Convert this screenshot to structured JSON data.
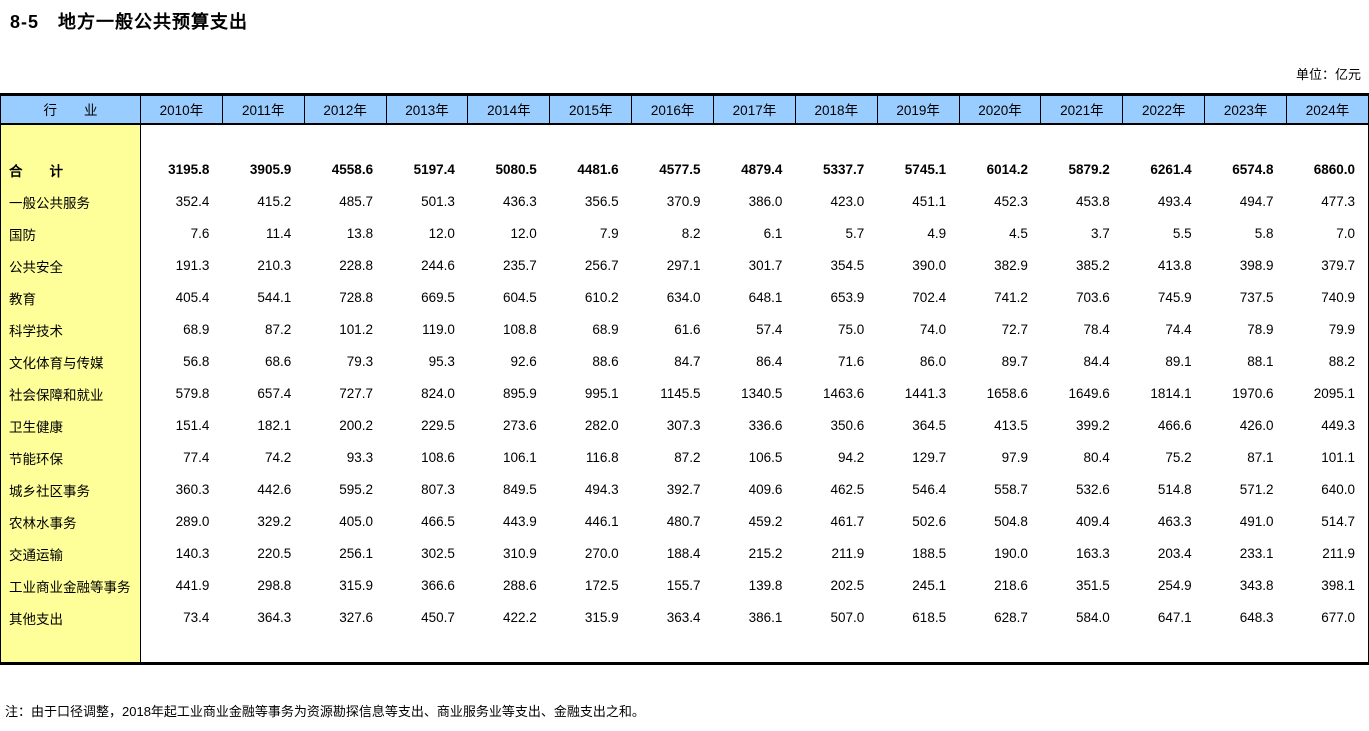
{
  "page": {
    "title": "8-5　地方一般公共预算支出",
    "unit_label": "单位：亿元",
    "footnote": "注：由于口径调整，2018年起工业商业金融等事务为资源勘探信息等支出、商业服务业等支出、金融支出之和。"
  },
  "colors": {
    "header_bg": "#99CCFF",
    "label_col_bg": "#FFFF99",
    "border": "#000000"
  },
  "table": {
    "industry_header": "行　　业",
    "year_headers": [
      "2010年",
      "2011年",
      "2012年",
      "2013年",
      "2014年",
      "2015年",
      "2016年",
      "2017年",
      "2018年",
      "2019年",
      "2020年",
      "2021年",
      "2022年",
      "2023年",
      "2024年"
    ],
    "rows": [
      {
        "label": "合　　计",
        "bold": true,
        "values": [
          "3195.8",
          "3905.9",
          "4558.6",
          "5197.4",
          "5080.5",
          "4481.6",
          "4577.5",
          "4879.4",
          "5337.7",
          "5745.1",
          "6014.2",
          "5879.2",
          "6261.4",
          "6574.8",
          "6860.0"
        ]
      },
      {
        "label": "一般公共服务",
        "bold": false,
        "values": [
          "352.4",
          "415.2",
          "485.7",
          "501.3",
          "436.3",
          "356.5",
          "370.9",
          "386.0",
          "423.0",
          "451.1",
          "452.3",
          "453.8",
          "493.4",
          "494.7",
          "477.3"
        ]
      },
      {
        "label": "国防",
        "bold": false,
        "values": [
          "7.6",
          "11.4",
          "13.8",
          "12.0",
          "12.0",
          "7.9",
          "8.2",
          "6.1",
          "5.7",
          "4.9",
          "4.5",
          "3.7",
          "5.5",
          "5.8",
          "7.0"
        ]
      },
      {
        "label": "公共安全",
        "bold": false,
        "values": [
          "191.3",
          "210.3",
          "228.8",
          "244.6",
          "235.7",
          "256.7",
          "297.1",
          "301.7",
          "354.5",
          "390.0",
          "382.9",
          "385.2",
          "413.8",
          "398.9",
          "379.7"
        ]
      },
      {
        "label": "教育",
        "bold": false,
        "values": [
          "405.4",
          "544.1",
          "728.8",
          "669.5",
          "604.5",
          "610.2",
          "634.0",
          "648.1",
          "653.9",
          "702.4",
          "741.2",
          "703.6",
          "745.9",
          "737.5",
          "740.9"
        ]
      },
      {
        "label": "科学技术",
        "bold": false,
        "values": [
          "68.9",
          "87.2",
          "101.2",
          "119.0",
          "108.8",
          "68.9",
          "61.6",
          "57.4",
          "75.0",
          "74.0",
          "72.7",
          "78.4",
          "74.4",
          "78.9",
          "79.9"
        ]
      },
      {
        "label": "文化体育与传媒",
        "bold": false,
        "values": [
          "56.8",
          "68.6",
          "79.3",
          "95.3",
          "92.6",
          "88.6",
          "84.7",
          "86.4",
          "71.6",
          "86.0",
          "89.7",
          "84.4",
          "89.1",
          "88.1",
          "88.2"
        ]
      },
      {
        "label": "社会保障和就业",
        "bold": false,
        "values": [
          "579.8",
          "657.4",
          "727.7",
          "824.0",
          "895.9",
          "995.1",
          "1145.5",
          "1340.5",
          "1463.6",
          "1441.3",
          "1658.6",
          "1649.6",
          "1814.1",
          "1970.6",
          "2095.1"
        ]
      },
      {
        "label": "卫生健康",
        "bold": false,
        "values": [
          "151.4",
          "182.1",
          "200.2",
          "229.5",
          "273.6",
          "282.0",
          "307.3",
          "336.6",
          "350.6",
          "364.5",
          "413.5",
          "399.2",
          "466.6",
          "426.0",
          "449.3"
        ]
      },
      {
        "label": "节能环保",
        "bold": false,
        "values": [
          "77.4",
          "74.2",
          "93.3",
          "108.6",
          "106.1",
          "116.8",
          "87.2",
          "106.5",
          "94.2",
          "129.7",
          "97.9",
          "80.4",
          "75.2",
          "87.1",
          "101.1"
        ]
      },
      {
        "label": "城乡社区事务",
        "bold": false,
        "values": [
          "360.3",
          "442.6",
          "595.2",
          "807.3",
          "849.5",
          "494.3",
          "392.7",
          "409.6",
          "462.5",
          "546.4",
          "558.7",
          "532.6",
          "514.8",
          "571.2",
          "640.0"
        ]
      },
      {
        "label": "农林水事务",
        "bold": false,
        "values": [
          "289.0",
          "329.2",
          "405.0",
          "466.5",
          "443.9",
          "446.1",
          "480.7",
          "459.2",
          "461.7",
          "502.6",
          "504.8",
          "409.4",
          "463.3",
          "491.0",
          "514.7"
        ]
      },
      {
        "label": "交通运输",
        "bold": false,
        "values": [
          "140.3",
          "220.5",
          "256.1",
          "302.5",
          "310.9",
          "270.0",
          "188.4",
          "215.2",
          "211.9",
          "188.5",
          "190.0",
          "163.3",
          "203.4",
          "233.1",
          "211.9"
        ]
      },
      {
        "label": "工业商业金融等事务",
        "bold": false,
        "values": [
          "441.9",
          "298.8",
          "315.9",
          "366.6",
          "288.6",
          "172.5",
          "155.7",
          "139.8",
          "202.5",
          "245.1",
          "218.6",
          "351.5",
          "254.9",
          "343.8",
          "398.1"
        ]
      },
      {
        "label": "其他支出",
        "bold": false,
        "values": [
          "73.4",
          "364.3",
          "327.6",
          "450.7",
          "422.2",
          "315.9",
          "363.4",
          "386.1",
          "507.0",
          "618.5",
          "628.7",
          "584.0",
          "647.1",
          "648.3",
          "677.0"
        ]
      }
    ]
  }
}
